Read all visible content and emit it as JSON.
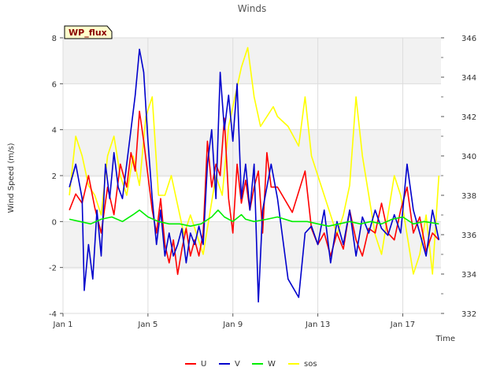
{
  "chart_data": {
    "type": "line",
    "title": "Winds",
    "site_label": "WP_flux",
    "xlabel": "Time",
    "ylabel": "Wind Speed (m/s)",
    "xlim": [
      0,
      17.8
    ],
    "ylim": [
      -4,
      8
    ],
    "y2lim": [
      332,
      346
    ],
    "x_ticks": [
      {
        "label": "Jan 1",
        "value": 0
      },
      {
        "label": "Jan 5",
        "value": 4
      },
      {
        "label": "Jan 9",
        "value": 8
      },
      {
        "label": "Jan 13",
        "value": 12
      },
      {
        "label": "Jan 17",
        "value": 16
      }
    ],
    "y_ticks": [
      -4,
      -2,
      0,
      2,
      4,
      6,
      8
    ],
    "y2_ticks": [
      332,
      334,
      336,
      338,
      340,
      342,
      344,
      346
    ],
    "series": [
      {
        "name": "U",
        "color": "#ff0000",
        "axis": "left",
        "x": [
          0.3,
          0.6,
          0.9,
          1.2,
          1.5,
          1.8,
          2.1,
          2.4,
          2.7,
          3.0,
          3.2,
          3.4,
          3.6,
          3.8,
          4.0,
          4.2,
          4.4,
          4.6,
          4.8,
          5.0,
          5.2,
          5.4,
          5.6,
          5.8,
          6.0,
          6.2,
          6.4,
          6.6,
          6.8,
          7.0,
          7.2,
          7.4,
          7.6,
          7.8,
          8.0,
          8.2,
          8.4,
          8.6,
          8.8,
          9.0,
          9.2,
          9.4,
          9.6,
          9.8,
          10.1,
          10.8,
          11.4,
          11.7,
          12.0,
          12.3,
          12.6,
          12.9,
          13.2,
          13.5,
          13.8,
          14.1,
          14.4,
          14.7,
          15.0,
          15.3,
          15.6,
          15.9,
          16.2,
          16.5,
          16.8,
          17.1,
          17.4,
          17.7
        ],
        "y": [
          0.5,
          1.2,
          0.8,
          2.0,
          0.6,
          -0.5,
          1.5,
          0.3,
          2.5,
          1.5,
          3.0,
          2.2,
          4.8,
          3.5,
          2.0,
          0.5,
          -0.5,
          1.0,
          -1.0,
          -1.8,
          -0.8,
          -2.3,
          -1.2,
          -0.3,
          -1.5,
          -0.8,
          -1.5,
          -0.5,
          3.5,
          1.5,
          2.5,
          2.0,
          4.5,
          1.0,
          -0.5,
          2.5,
          0.8,
          1.8,
          0.5,
          1.5,
          2.2,
          -0.5,
          3.0,
          1.5,
          1.5,
          0.4,
          2.2,
          -0.3,
          -1.0,
          -0.5,
          -1.5,
          -0.5,
          -1.2,
          0.5,
          -0.8,
          -1.5,
          -0.3,
          -0.5,
          0.8,
          -0.5,
          -0.8,
          0.5,
          1.5,
          -0.5,
          0.2,
          -1.3,
          -0.5,
          -0.8
        ]
      },
      {
        "name": "V",
        "color": "#0000cc",
        "axis": "left",
        "x": [
          0.3,
          0.6,
          0.9,
          1.0,
          1.2,
          1.4,
          1.6,
          1.8,
          2.0,
          2.2,
          2.4,
          2.6,
          2.8,
          3.0,
          3.2,
          3.4,
          3.6,
          3.8,
          4.0,
          4.2,
          4.4,
          4.6,
          4.8,
          5.0,
          5.2,
          5.4,
          5.6,
          5.8,
          6.0,
          6.2,
          6.4,
          6.6,
          6.8,
          7.0,
          7.2,
          7.4,
          7.6,
          7.8,
          8.0,
          8.2,
          8.4,
          8.6,
          8.8,
          9.0,
          9.2,
          9.4,
          9.6,
          9.8,
          10.1,
          10.6,
          11.1,
          11.4,
          11.7,
          12.0,
          12.3,
          12.6,
          12.9,
          13.2,
          13.5,
          13.8,
          14.1,
          14.4,
          14.7,
          15.0,
          15.3,
          15.6,
          15.9,
          16.2,
          16.5,
          16.8,
          17.1,
          17.4,
          17.7
        ],
        "y": [
          1.5,
          2.5,
          1.0,
          -3.0,
          -1.0,
          -2.5,
          0.5,
          -1.5,
          2.5,
          1.0,
          3.0,
          1.5,
          1.0,
          2.5,
          4.0,
          5.5,
          7.5,
          6.5,
          3.5,
          1.0,
          -1.0,
          0.5,
          -1.5,
          -0.5,
          -1.5,
          -1.0,
          -0.3,
          -1.8,
          -0.5,
          -1.0,
          -0.2,
          -1.0,
          2.5,
          4.0,
          1.0,
          6.5,
          4.0,
          5.5,
          3.5,
          6.0,
          1.0,
          2.5,
          0.5,
          2.5,
          -3.5,
          0.5,
          1.5,
          2.5,
          1.0,
          -2.5,
          -3.3,
          -0.5,
          -0.2,
          -1.0,
          0.5,
          -1.8,
          0.0,
          -1.0,
          0.5,
          -1.5,
          0.2,
          -0.5,
          0.5,
          -0.3,
          -0.6,
          0.3,
          -0.5,
          2.5,
          0.5,
          -0.5,
          -1.5,
          0.5,
          -0.8
        ]
      },
      {
        "name": "W",
        "color": "#00ee00",
        "axis": "left",
        "x": [
          0.3,
          0.8,
          1.3,
          1.8,
          2.3,
          2.8,
          3.3,
          3.6,
          4.0,
          4.5,
          5.0,
          5.5,
          6.0,
          6.5,
          7.0,
          7.3,
          7.6,
          8.0,
          8.4,
          8.6,
          9.0,
          9.6,
          10.1,
          10.8,
          11.5,
          12.0,
          12.5,
          13.0,
          13.5,
          14.0,
          14.5,
          15.0,
          15.5,
          16.0,
          16.5,
          17.0,
          17.7
        ],
        "y": [
          0.1,
          0.0,
          -0.1,
          0.1,
          0.2,
          0.0,
          0.3,
          0.5,
          0.2,
          0.0,
          -0.1,
          -0.1,
          -0.2,
          -0.1,
          0.2,
          0.5,
          0.2,
          0.0,
          0.3,
          0.1,
          0.0,
          0.1,
          0.2,
          0.0,
          0.0,
          -0.1,
          -0.2,
          -0.1,
          0.0,
          -0.1,
          0.0,
          -0.1,
          0.1,
          0.2,
          -0.1,
          0.0,
          -0.1
        ]
      },
      {
        "name": "sos",
        "color": "#ffff00",
        "axis": "right",
        "x": [
          0.3,
          0.6,
          0.9,
          1.2,
          1.5,
          1.8,
          2.1,
          2.4,
          2.7,
          3.0,
          3.3,
          3.6,
          3.9,
          4.2,
          4.5,
          4.8,
          5.1,
          5.4,
          5.7,
          6.0,
          6.3,
          6.6,
          6.9,
          7.2,
          7.5,
          7.8,
          8.1,
          8.4,
          8.7,
          9.0,
          9.3,
          9.6,
          9.9,
          10.1,
          10.6,
          11.1,
          11.4,
          11.7,
          12.0,
          12.3,
          12.6,
          12.9,
          13.2,
          13.5,
          13.8,
          14.1,
          14.4,
          14.7,
          15.0,
          15.3,
          15.6,
          15.9,
          16.2,
          16.5,
          16.8,
          17.1,
          17.4,
          17.7
        ],
        "y": [
          338,
          341,
          340,
          338.5,
          338,
          337,
          340,
          341,
          339,
          338,
          340,
          338.5,
          342,
          343,
          338,
          338,
          339,
          337.5,
          336,
          337,
          336,
          335,
          337,
          339,
          338,
          341.5,
          343,
          344.5,
          345.5,
          343,
          341.5,
          342,
          342.5,
          342,
          341.5,
          340.5,
          343,
          340,
          339,
          338,
          337,
          336,
          337,
          338.5,
          343,
          340,
          338,
          336,
          335,
          337,
          339,
          338,
          336,
          334,
          335,
          337,
          334,
          339
        ]
      }
    ]
  }
}
